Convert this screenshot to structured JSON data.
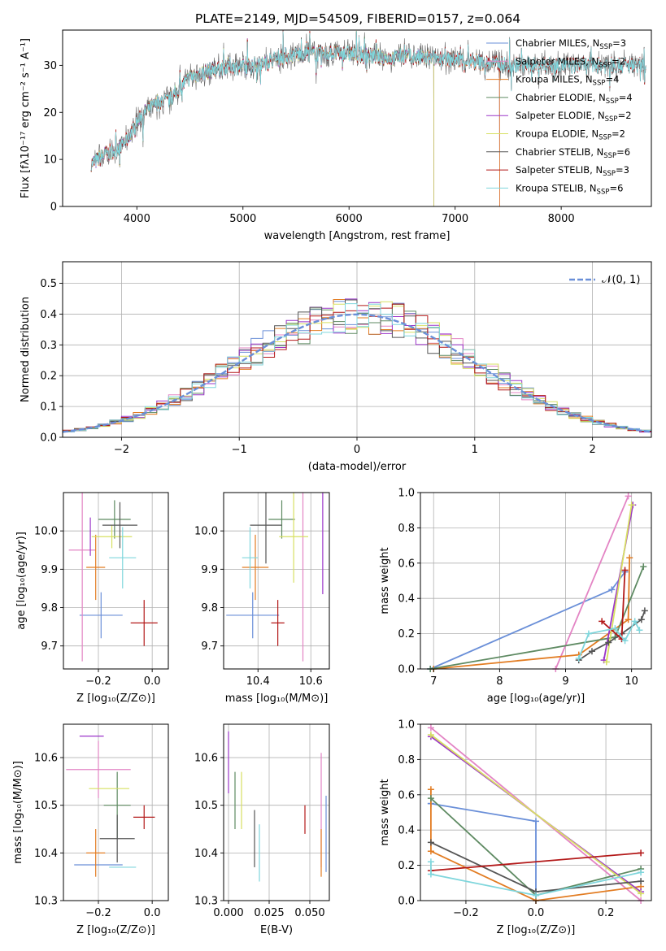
{
  "page_title": "PLATE=2149, MJD=54509, FIBERID=0157, z=0.064",
  "chart_data": [
    {
      "id": "spectrum",
      "type": "line",
      "xlabel": "wavelength [Angstrom, rest frame]",
      "ylabel": "Flux [fλ10⁻¹⁷ erg cm⁻² s⁻¹ A⁻¹]",
      "xlim": [
        3300,
        8850
      ],
      "ylim": [
        0,
        37.5
      ],
      "xticks": [
        "4000",
        "5000",
        "6000",
        "7000",
        "8000"
      ],
      "yticks": [
        "0",
        "10",
        "20",
        "30"
      ],
      "grid": false,
      "legend_position": "top-right",
      "continuum_x": [
        3570,
        3700,
        3800,
        3900,
        4000,
        4100,
        4200,
        4300,
        4400,
        4500,
        4700,
        4900,
        5000,
        5200,
        5400,
        5600,
        5800,
        6000,
        6200,
        6400,
        6500,
        6700,
        6900,
        7100,
        7300,
        7500
      ],
      "continuum_y": [
        9,
        11,
        12,
        14,
        18,
        20.5,
        22,
        22.5,
        25,
        27.5,
        29,
        30,
        29.5,
        30.5,
        32,
        32.5,
        32.5,
        32.5,
        32,
        31.5,
        32,
        31.5,
        31.5,
        31,
        30.5,
        30
      ],
      "series": [
        {
          "name": "Chabrier MILES, N",
          "sub": "SSP",
          "suffix": "=3",
          "color": "#6a8fd8",
          "end": 7420
        },
        {
          "name": "Salpeter MILES, N",
          "sub": "SSP",
          "suffix": "=2",
          "color": "#e384c4",
          "end": 7420
        },
        {
          "name": "Kroupa MILES, N",
          "sub": "SSP",
          "suffix": "=4",
          "color": "#e27c22",
          "end": 7420
        },
        {
          "name": "Chabrier ELODIE, N",
          "sub": "SSP",
          "suffix": "=4",
          "color": "#5e8a62",
          "end": 6800
        },
        {
          "name": "Salpeter ELODIE, N",
          "sub": "SSP",
          "suffix": "=2",
          "color": "#9b35c9",
          "end": 6800
        },
        {
          "name": "Kroupa ELODIE, N",
          "sub": "SSP",
          "suffix": "=2",
          "color": "#d7e062",
          "end": 6800
        },
        {
          "name": "Chabrier STELIB, N",
          "sub": "SSP",
          "suffix": "=6",
          "color": "#555555",
          "end": 8800
        },
        {
          "name": "Salpeter STELIB, N",
          "sub": "SSP",
          "suffix": "=3",
          "color": "#b31919",
          "end": 8800
        },
        {
          "name": "Kroupa STELIB, N",
          "sub": "SSP",
          "suffix": "=6",
          "color": "#7fd6dc",
          "end": 8800
        }
      ]
    },
    {
      "id": "residuals",
      "type": "histogram",
      "xlabel": "(data-model)/error",
      "ylabel": "Normed distribution",
      "xlim": [
        -2.5,
        2.5
      ],
      "ylim": [
        0,
        0.57
      ],
      "xticks": [
        "−2",
        "−1",
        "0",
        "1",
        "2"
      ],
      "yticks": [
        "0.0",
        "0.1",
        "0.2",
        "0.3",
        "0.4",
        "0.5"
      ],
      "grid": true,
      "bin_width": 0.1,
      "legend_label": "𝒩(0, 1)",
      "legend_position": "top-right",
      "reference_curve": "normal pdf, mean 0, sigma 1",
      "reference_color": "#6a8fd8"
    },
    {
      "id": "age-vs-Z",
      "type": "scatter",
      "xlabel": "Z [log₁₀(Z/Z⊙)]",
      "ylabel": "age  [log₁₀(age/yr)]",
      "xlim": [
        -0.33,
        0.06
      ],
      "ylim": [
        9.64,
        10.1
      ],
      "xticks": [
        "−0.2",
        "0.0"
      ],
      "yticks": [
        "9.7",
        "9.8",
        "9.9",
        "10.0"
      ],
      "grid": true,
      "points": [
        {
          "x": -0.19,
          "y": 9.78,
          "xerr": 0.08,
          "yerr": 0.06
        },
        {
          "x": -0.26,
          "y": 9.95,
          "xerr": 0.05,
          "yerr": 0.29
        },
        {
          "x": -0.21,
          "y": 9.905,
          "xerr": 0.035,
          "yerr": 0.085
        },
        {
          "x": -0.14,
          "y": 10.03,
          "xerr": 0.06,
          "yerr": 0.05
        },
        {
          "x": -0.23,
          "y": 9.985,
          "xerr": 0.0,
          "yerr": 0.05
        },
        {
          "x": -0.15,
          "y": 9.985,
          "xerr": 0.075,
          "yerr": 0.03
        },
        {
          "x": -0.12,
          "y": 10.015,
          "xerr": 0.065,
          "yerr": 0.06
        },
        {
          "x": -0.03,
          "y": 9.76,
          "xerr": 0.05,
          "yerr": 0.06
        },
        {
          "x": -0.11,
          "y": 9.93,
          "xerr": 0.05,
          "yerr": 0.08
        }
      ]
    },
    {
      "id": "age-vs-mass",
      "type": "scatter",
      "xlabel": "mass [log₁₀(M/M⊙)]",
      "ylabel": "",
      "xlim": [
        10.27,
        10.67
      ],
      "ylim": [
        9.64,
        10.1
      ],
      "xticks": [
        "10.4",
        "10.6"
      ],
      "yticks": [
        "9.7",
        "9.8",
        "9.9",
        "10.0"
      ],
      "grid": true,
      "points": [
        {
          "x": 10.38,
          "y": 9.78,
          "xerr": 0.1,
          "yerr": 0.06
        },
        {
          "x": 10.57,
          "y": 9.95,
          "xerr": 0.0,
          "yerr": 0.29
        },
        {
          "x": 10.39,
          "y": 9.905,
          "xerr": 0.05,
          "yerr": 0.085
        },
        {
          "x": 10.49,
          "y": 10.03,
          "xerr": 0.05,
          "yerr": 0.05
        },
        {
          "x": 10.645,
          "y": 9.985,
          "xerr": 0.0,
          "yerr": 0.15
        },
        {
          "x": 10.535,
          "y": 9.985,
          "xerr": 0.055,
          "yerr": 0.12
        },
        {
          "x": 10.43,
          "y": 10.015,
          "xerr": 0.06,
          "yerr": 0.1
        },
        {
          "x": 10.475,
          "y": 9.76,
          "xerr": 0.025,
          "yerr": 0.06
        },
        {
          "x": 10.37,
          "y": 9.93,
          "xerr": 0.03,
          "yerr": 0.08
        }
      ]
    },
    {
      "id": "weight-vs-age",
      "type": "line",
      "xlabel": "age  [log₁₀(age/yr)]",
      "ylabel": "mass weight",
      "xlim": [
        6.8,
        10.3
      ],
      "ylim": [
        0,
        1
      ],
      "xticks": [
        "7",
        "8",
        "9",
        "10"
      ],
      "yticks": [
        "0.0",
        "0.2",
        "0.4",
        "0.6",
        "0.8",
        "1.0"
      ],
      "grid": true,
      "series": [
        {
          "x": [
            6.95,
            9.7,
            9.9
          ],
          "y": [
            0.0,
            0.45,
            0.55
          ]
        },
        {
          "x": [
            8.85,
            9.95
          ],
          "y": [
            0.0,
            0.98
          ]
        },
        {
          "x": [
            7.0,
            9.2,
            9.95,
            9.97
          ],
          "y": [
            0.0,
            0.08,
            0.28,
            0.63
          ]
        },
        {
          "x": [
            6.95,
            9.75,
            10.18
          ],
          "y": [
            0.0,
            0.18,
            0.58
          ]
        },
        {
          "x": [
            9.58,
            10.02
          ],
          "y": [
            0.05,
            0.93
          ]
        },
        {
          "x": [
            9.62,
            10.0
          ],
          "y": [
            0.04,
            0.93
          ]
        },
        {
          "x": [
            9.2,
            9.4,
            9.65,
            9.85,
            10.15,
            10.2
          ],
          "y": [
            0.05,
            0.1,
            0.15,
            0.2,
            0.28,
            0.33
          ]
        },
        {
          "x": [
            9.55,
            9.85,
            9.9
          ],
          "y": [
            0.27,
            0.17,
            0.56
          ]
        },
        {
          "x": [
            9.2,
            9.35,
            9.75,
            9.9,
            10.05,
            10.12
          ],
          "y": [
            0.06,
            0.2,
            0.23,
            0.16,
            0.27,
            0.22
          ]
        }
      ]
    },
    {
      "id": "mass-vs-Z",
      "type": "scatter",
      "xlabel": "Z [log₁₀(Z/Z⊙)]",
      "ylabel": "mass [log₁₀(M/M⊙)]",
      "xlim": [
        -0.33,
        0.06
      ],
      "ylim": [
        10.3,
        10.67
      ],
      "xticks": [
        "−0.2",
        "0.0"
      ],
      "yticks": [
        "10.3",
        "10.4",
        "10.5",
        "10.6"
      ],
      "grid": true,
      "points": [
        {
          "x": -0.2,
          "y": 10.375,
          "xerr": 0.09,
          "yerr": 0.0
        },
        {
          "x": -0.2,
          "y": 10.575,
          "xerr": 0.12,
          "yerr": 0.06
        },
        {
          "x": -0.21,
          "y": 10.4,
          "xerr": 0.035,
          "yerr": 0.05
        },
        {
          "x": -0.13,
          "y": 10.5,
          "xerr": 0.05,
          "yerr": 0.07
        },
        {
          "x": -0.225,
          "y": 10.645,
          "xerr": 0.045,
          "yerr": 0.0
        },
        {
          "x": -0.16,
          "y": 10.535,
          "xerr": 0.075,
          "yerr": 0.0
        },
        {
          "x": -0.13,
          "y": 10.43,
          "xerr": 0.065,
          "yerr": 0.05
        },
        {
          "x": -0.03,
          "y": 10.475,
          "xerr": 0.04,
          "yerr": 0.025
        },
        {
          "x": -0.11,
          "y": 10.37,
          "xerr": 0.05,
          "yerr": 0.0
        }
      ]
    },
    {
      "id": "mass-vs-EBV",
      "type": "scatter",
      "xlabel": "E(B-V)",
      "ylabel": "",
      "xlim": [
        -0.003,
        0.062
      ],
      "ylim": [
        10.3,
        10.67
      ],
      "xticks": [
        "0.000",
        "0.025",
        "0.050"
      ],
      "yticks": [
        "10.3",
        "10.4",
        "10.5",
        "10.6"
      ],
      "grid": true,
      "points": [
        {
          "x": 0.06,
          "y": 10.44,
          "xerr": 0,
          "yerr": 0.08
        },
        {
          "x": 0.057,
          "y": 10.49,
          "xerr": 0,
          "yerr": 0.12
        },
        {
          "x": 0.057,
          "y": 10.4,
          "xerr": 0,
          "yerr": 0.05
        },
        {
          "x": 0.004,
          "y": 10.51,
          "xerr": 0,
          "yerr": 0.06
        },
        {
          "x": 0.0,
          "y": 10.59,
          "xerr": 0,
          "yerr": 0.065
        },
        {
          "x": 0.008,
          "y": 10.51,
          "xerr": 0,
          "yerr": 0.06
        },
        {
          "x": 0.016,
          "y": 10.43,
          "xerr": 0,
          "yerr": 0.06
        },
        {
          "x": 0.047,
          "y": 10.47,
          "xerr": 0,
          "yerr": 0.03
        },
        {
          "x": 0.019,
          "y": 10.4,
          "xerr": 0,
          "yerr": 0.06
        }
      ]
    },
    {
      "id": "weight-vs-Z",
      "type": "line",
      "xlabel": "Z [log₁₀(Z/Z⊙)]",
      "ylabel": "mass weight",
      "xlim": [
        -0.33,
        0.33
      ],
      "ylim": [
        0,
        1
      ],
      "xticks": [
        "−0.2",
        "0.0",
        "0.2"
      ],
      "yticks": [
        "0.0",
        "0.2",
        "0.4",
        "0.6",
        "0.8",
        "1.0"
      ],
      "grid": true,
      "series": [
        {
          "x": [
            -0.3,
            -0.3,
            0.0,
            0.0
          ],
          "y": [
            0.55,
            0.55,
            0.45,
            0.0
          ]
        },
        {
          "x": [
            -0.3,
            0.3
          ],
          "y": [
            0.98,
            0.0
          ]
        },
        {
          "x": [
            -0.3,
            -0.3,
            0.0,
            0.3
          ],
          "y": [
            0.63,
            0.28,
            0.0,
            0.08
          ]
        },
        {
          "x": [
            -0.3,
            0.0,
            0.3
          ],
          "y": [
            0.58,
            0.03,
            0.18
          ]
        },
        {
          "x": [
            -0.3,
            0.3
          ],
          "y": [
            0.93,
            0.05
          ]
        },
        {
          "x": [
            -0.3,
            0.3
          ],
          "y": [
            0.94,
            0.04
          ]
        },
        {
          "x": [
            -0.3,
            0.0,
            0.3
          ],
          "y": [
            0.33,
            0.05,
            0.11
          ]
        },
        {
          "x": [
            -0.3,
            0.3
          ],
          "y": [
            0.17,
            0.27
          ]
        },
        {
          "x": [
            -0.3,
            -0.3,
            0.0,
            0.3
          ],
          "y": [
            0.22,
            0.15,
            0.03,
            0.16
          ]
        }
      ]
    }
  ]
}
